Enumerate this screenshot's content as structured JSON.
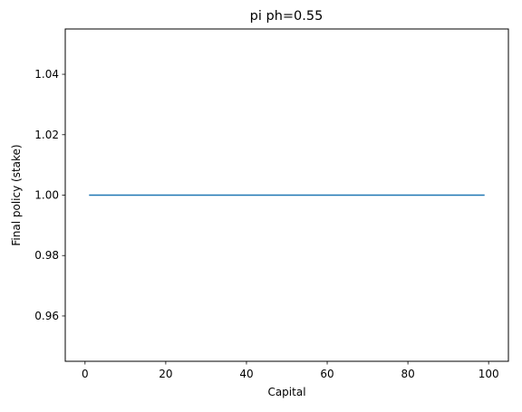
{
  "chart_data": {
    "type": "line",
    "title": "pi ph=0.55",
    "xlabel": "Capital",
    "ylabel": "Final policy (stake)",
    "xlim": [
      -4.9,
      104.9
    ],
    "ylim": [
      0.945,
      1.055
    ],
    "xticks": [
      0,
      20,
      40,
      60,
      80,
      100
    ],
    "xtick_labels": [
      "0",
      "20",
      "40",
      "60",
      "80",
      "100"
    ],
    "yticks": [
      0.96,
      0.98,
      1.0,
      1.02,
      1.04
    ],
    "ytick_labels": [
      "0.96",
      "0.98",
      "1.00",
      "1.02",
      "1.04"
    ],
    "grid": false,
    "series": [
      {
        "color": "#1f77b4",
        "x": [
          1,
          99
        ],
        "y": [
          1.0,
          1.0
        ]
      }
    ]
  }
}
